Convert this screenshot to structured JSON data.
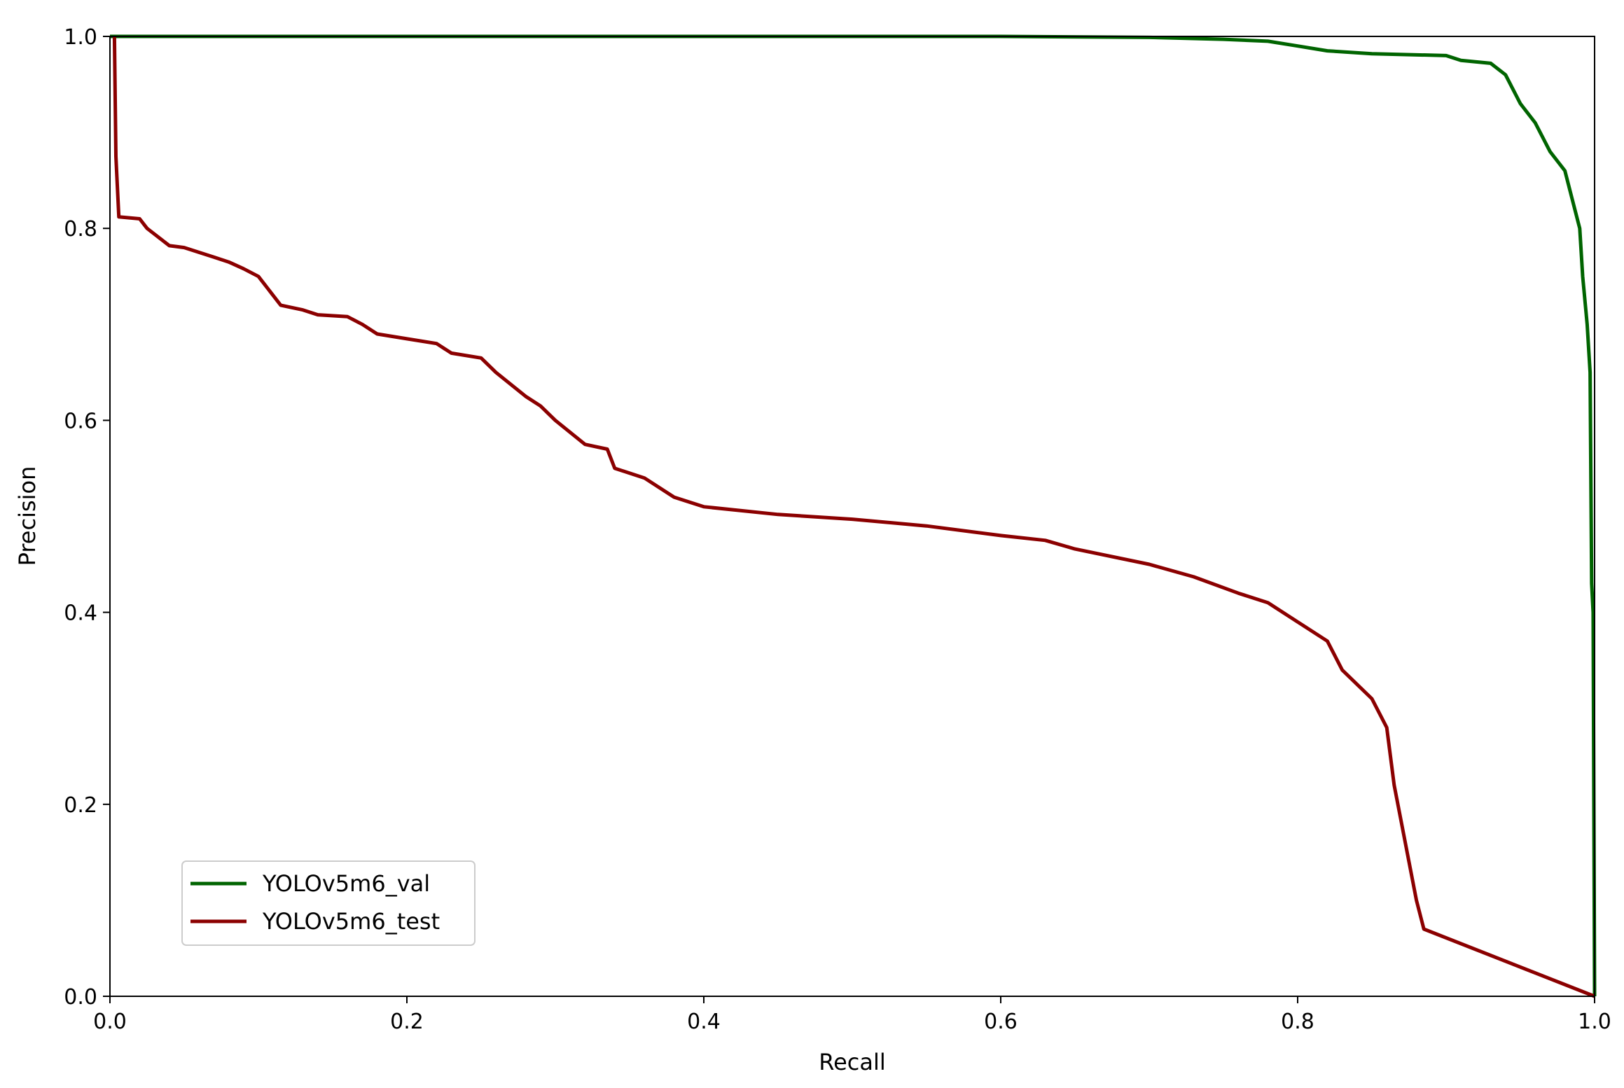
{
  "chart_data": {
    "type": "line",
    "title": "",
    "xlabel": "Recall",
    "ylabel": "Precision",
    "xlim": [
      0.0,
      1.0
    ],
    "ylim": [
      0.0,
      1.0
    ],
    "xticks": [
      "0.0",
      "0.2",
      "0.4",
      "0.6",
      "0.8",
      "1.0"
    ],
    "yticks": [
      "0.0",
      "0.2",
      "0.4",
      "0.6",
      "0.8",
      "1.0"
    ],
    "grid": false,
    "legend_position": "lower-left",
    "series": [
      {
        "name": "YOLOv5m6_val",
        "color": "#006400",
        "points": [
          [
            0.0,
            1.0
          ],
          [
            0.6,
            1.0
          ],
          [
            0.7,
            0.999
          ],
          [
            0.75,
            0.997
          ],
          [
            0.78,
            0.995
          ],
          [
            0.8,
            0.99
          ],
          [
            0.82,
            0.985
          ],
          [
            0.85,
            0.982
          ],
          [
            0.9,
            0.98
          ],
          [
            0.91,
            0.975
          ],
          [
            0.93,
            0.972
          ],
          [
            0.94,
            0.96
          ],
          [
            0.95,
            0.93
          ],
          [
            0.96,
            0.91
          ],
          [
            0.97,
            0.88
          ],
          [
            0.98,
            0.86
          ],
          [
            0.985,
            0.83
          ],
          [
            0.99,
            0.8
          ],
          [
            0.992,
            0.75
          ],
          [
            0.995,
            0.7
          ],
          [
            0.997,
            0.65
          ],
          [
            0.998,
            0.43
          ],
          [
            0.999,
            0.4
          ],
          [
            1.0,
            0.0
          ]
        ]
      },
      {
        "name": "YOLOv5m6_test",
        "color": "#8B0000",
        "points": [
          [
            0.003,
            1.0
          ],
          [
            0.004,
            0.875
          ],
          [
            0.006,
            0.812
          ],
          [
            0.02,
            0.81
          ],
          [
            0.025,
            0.8
          ],
          [
            0.04,
            0.782
          ],
          [
            0.05,
            0.78
          ],
          [
            0.07,
            0.77
          ],
          [
            0.08,
            0.765
          ],
          [
            0.09,
            0.758
          ],
          [
            0.1,
            0.75
          ],
          [
            0.11,
            0.73
          ],
          [
            0.115,
            0.72
          ],
          [
            0.13,
            0.715
          ],
          [
            0.14,
            0.71
          ],
          [
            0.16,
            0.708
          ],
          [
            0.17,
            0.7
          ],
          [
            0.18,
            0.69
          ],
          [
            0.2,
            0.685
          ],
          [
            0.22,
            0.68
          ],
          [
            0.23,
            0.67
          ],
          [
            0.25,
            0.665
          ],
          [
            0.26,
            0.65
          ],
          [
            0.28,
            0.625
          ],
          [
            0.29,
            0.615
          ],
          [
            0.3,
            0.6
          ],
          [
            0.32,
            0.575
          ],
          [
            0.335,
            0.57
          ],
          [
            0.34,
            0.55
          ],
          [
            0.36,
            0.54
          ],
          [
            0.38,
            0.52
          ],
          [
            0.4,
            0.51
          ],
          [
            0.45,
            0.502
          ],
          [
            0.5,
            0.497
          ],
          [
            0.55,
            0.49
          ],
          [
            0.6,
            0.48
          ],
          [
            0.63,
            0.475
          ],
          [
            0.65,
            0.466
          ],
          [
            0.7,
            0.45
          ],
          [
            0.73,
            0.437
          ],
          [
            0.76,
            0.42
          ],
          [
            0.78,
            0.41
          ],
          [
            0.8,
            0.39
          ],
          [
            0.82,
            0.37
          ],
          [
            0.83,
            0.34
          ],
          [
            0.85,
            0.31
          ],
          [
            0.86,
            0.28
          ],
          [
            0.865,
            0.22
          ],
          [
            0.87,
            0.18
          ],
          [
            0.875,
            0.14
          ],
          [
            0.88,
            0.1
          ],
          [
            0.885,
            0.07
          ],
          [
            1.0,
            0.0
          ]
        ]
      }
    ]
  }
}
